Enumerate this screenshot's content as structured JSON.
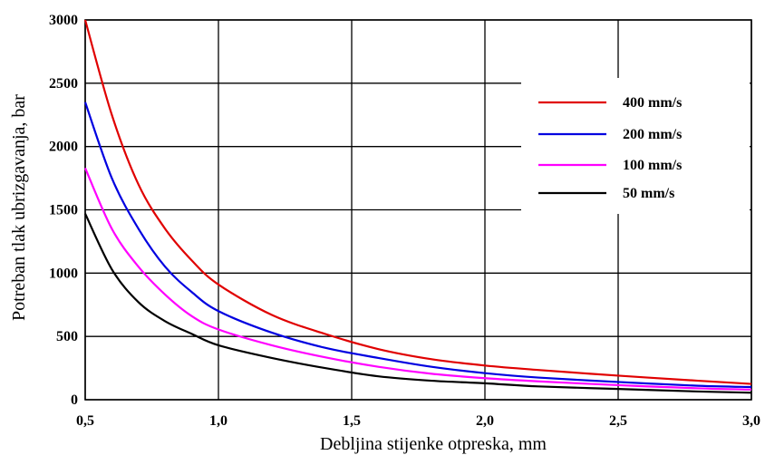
{
  "chart_data": {
    "type": "line",
    "title": "",
    "xlabel": "Debljina stijenke otpreska, mm",
    "ylabel": "Potreban tlak ubrizgavanja, bar",
    "xlim": [
      0.5,
      3.0
    ],
    "ylim": [
      0,
      3000
    ],
    "x_ticks": [
      "0,5",
      "1,0",
      "1,5",
      "2,0",
      "2,5",
      "3,0"
    ],
    "y_ticks": [
      "0",
      "500",
      "1000",
      "1500",
      "2000",
      "2500",
      "3000"
    ],
    "grid": true,
    "legend_position": "top-right",
    "x": [
      0.5,
      0.6,
      0.7,
      0.8,
      0.9,
      1.0,
      1.2,
      1.4,
      1.6,
      1.8,
      2.0,
      2.2,
      2.5,
      2.8,
      3.0
    ],
    "series": [
      {
        "name": "400 mm/s",
        "color": "#e00000",
        "values": [
          3000,
          2250,
          1700,
          1350,
          1100,
          910,
          670,
          520,
          400,
          320,
          270,
          235,
          190,
          150,
          125
        ]
      },
      {
        "name": "200 mm/s",
        "color": "#0000e0",
        "values": [
          2350,
          1750,
          1350,
          1050,
          850,
          700,
          530,
          410,
          330,
          260,
          210,
          175,
          140,
          110,
          100
        ]
      },
      {
        "name": "100 mm/s",
        "color": "#ff00ff",
        "values": [
          1830,
          1350,
          1050,
          830,
          660,
          555,
          430,
          335,
          260,
          205,
          170,
          145,
          115,
          90,
          80
        ]
      },
      {
        "name": "50 mm/s",
        "color": "#000000",
        "values": [
          1470,
          1030,
          770,
          620,
          520,
          430,
          330,
          250,
          185,
          150,
          130,
          105,
          85,
          65,
          55
        ]
      }
    ]
  }
}
